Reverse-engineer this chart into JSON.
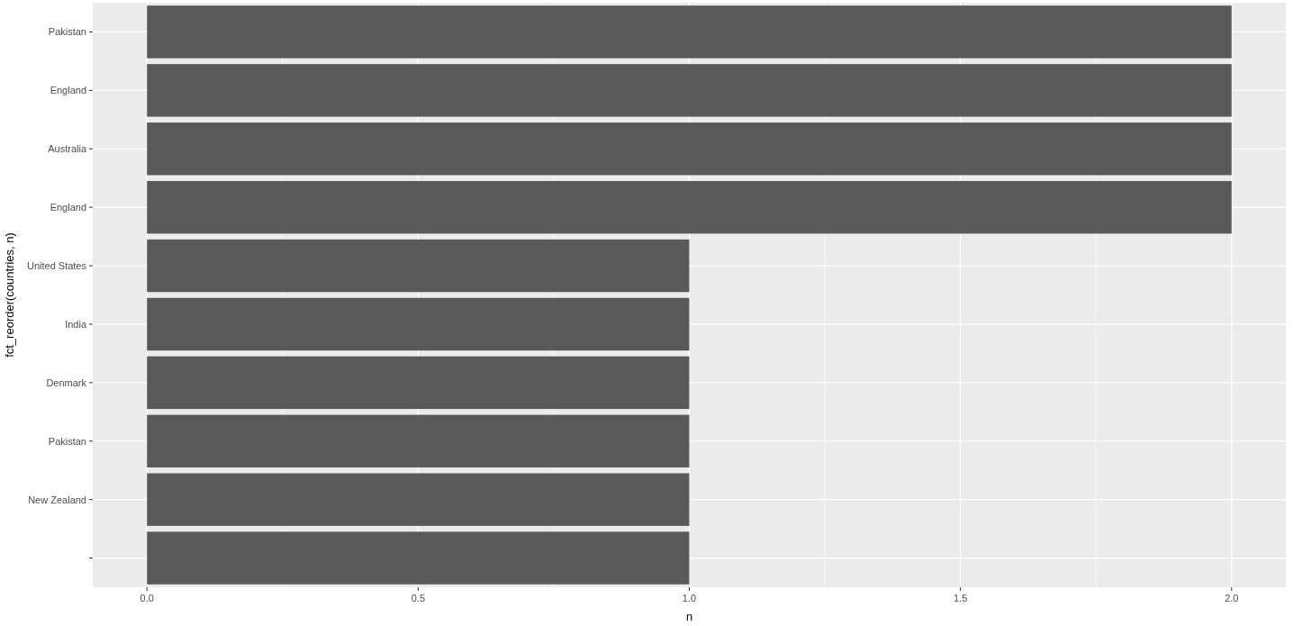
{
  "chart_data": {
    "type": "bar",
    "orientation": "horizontal",
    "xlabel": "n",
    "ylabel": "fct_reorder(countries, n)",
    "categories": [
      "Pakistan",
      "England",
      "Australia",
      "England",
      "United States",
      "India",
      "Denmark",
      "Pakistan",
      "New Zealand",
      null
    ],
    "values": [
      2,
      2,
      2,
      2,
      1,
      1,
      1,
      1,
      1,
      1
    ],
    "color": "#595959",
    "xlim": [
      -0.1,
      2.1
    ],
    "xticks": [
      {
        "value": 0,
        "label": "0.0"
      },
      {
        "value": 0.5,
        "label": "0.5"
      },
      {
        "value": 1,
        "label": "1.0"
      },
      {
        "value": 1.5,
        "label": "1.5"
      },
      {
        "value": 2,
        "label": "2.0"
      }
    ],
    "grid": true
  }
}
